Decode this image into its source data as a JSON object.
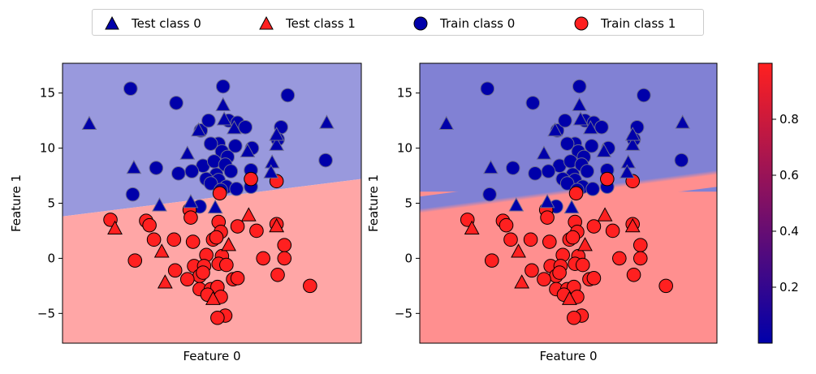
{
  "colors": {
    "class0": "#0000aa",
    "class1": "#ff2020",
    "region0_left": "#9999dd",
    "region1_left": "#ffa6a6",
    "region0_right": "#8181d4",
    "region1_right": "#ff8f8f",
    "edge": "#000000"
  },
  "legend": [
    {
      "label": "Test class 0",
      "marker": "triangle",
      "class": 0
    },
    {
      "label": "Test class 1",
      "marker": "triangle",
      "class": 1
    },
    {
      "label": "Train class 0",
      "marker": "circle",
      "class": 0
    },
    {
      "label": "Train class 1",
      "marker": "circle",
      "class": 1
    }
  ],
  "colorbar": {
    "ticks": [
      "0.2",
      "0.4",
      "0.6",
      "0.8"
    ],
    "tick_values": [
      0.2,
      0.4,
      0.6,
      0.8
    ],
    "range": [
      0,
      1
    ],
    "colormap": [
      "#0000aa",
      "#ff2020"
    ]
  },
  "chart_data": [
    {
      "type": "scatter",
      "title": "",
      "xlabel": "Feature 0",
      "ylabel": "Feature 1",
      "xlim": [
        -13.4,
        13.4
      ],
      "ylim": [
        -7.7,
        17.7
      ],
      "xticks": [],
      "yticks": [
        -5,
        0,
        5,
        10,
        15
      ],
      "decision_boundary": {
        "left_y": 3.8,
        "right_y": 7.2,
        "style": "hard"
      },
      "series": [
        {
          "name": "Train class 0",
          "class": 0,
          "marker": "circle",
          "points": [
            [
              -7.3,
              15.4
            ],
            [
              -3.2,
              14.1
            ],
            [
              1.0,
              15.6
            ],
            [
              6.8,
              14.8
            ],
            [
              -1.0,
              11.6
            ],
            [
              -0.3,
              12.5
            ],
            [
              1.5,
              12.5
            ],
            [
              2.3,
              12.3
            ],
            [
              3.0,
              11.9
            ],
            [
              6.2,
              11.9
            ],
            [
              5.9,
              10.8
            ],
            [
              0.6,
              10.4
            ],
            [
              2.1,
              10.2
            ],
            [
              3.6,
              10.0
            ],
            [
              -0.1,
              10.4
            ],
            [
              0.9,
              9.7
            ],
            [
              1.4,
              9.2
            ],
            [
              -5.0,
              8.2
            ],
            [
              -3.0,
              7.7
            ],
            [
              -0.8,
              8.4
            ],
            [
              0.2,
              8.8
            ],
            [
              1.2,
              8.5
            ],
            [
              -1.8,
              7.9
            ],
            [
              0.4,
              7.6
            ],
            [
              1.7,
              7.9
            ],
            [
              3.5,
              8.0
            ],
            [
              -0.5,
              7.2
            ],
            [
              0.6,
              7.1
            ],
            [
              1.3,
              6.5
            ],
            [
              2.2,
              6.3
            ],
            [
              3.5,
              6.5
            ],
            [
              -7.1,
              5.8
            ],
            [
              -0.1,
              6.8
            ],
            [
              -1.1,
              4.7
            ],
            [
              10.2,
              8.9
            ],
            [
              0.8,
              6.2
            ]
          ]
        },
        {
          "name": "Train class 1",
          "class": 1,
          "marker": "circle",
          "points": [
            [
              -9.1,
              3.5
            ],
            [
              -5.9,
              3.4
            ],
            [
              -5.6,
              3.0
            ],
            [
              -2.0,
              4.4
            ],
            [
              -1.9,
              3.7
            ],
            [
              0.7,
              5.9
            ],
            [
              3.5,
              7.2
            ],
            [
              5.8,
              7.0
            ],
            [
              -5.2,
              1.7
            ],
            [
              -3.4,
              1.7
            ],
            [
              -1.7,
              1.5
            ],
            [
              0.6,
              3.3
            ],
            [
              0.8,
              2.4
            ],
            [
              2.3,
              2.9
            ],
            [
              4.0,
              2.5
            ],
            [
              5.8,
              3.1
            ],
            [
              0.1,
              1.7
            ],
            [
              0.4,
              1.9
            ],
            [
              -0.5,
              0.3
            ],
            [
              0.9,
              0.2
            ],
            [
              6.5,
              1.2
            ],
            [
              -6.9,
              -0.2
            ],
            [
              -3.3,
              -1.1
            ],
            [
              -1.6,
              -0.7
            ],
            [
              -0.7,
              -0.7
            ],
            [
              0.6,
              -0.5
            ],
            [
              1.3,
              -0.6
            ],
            [
              4.6,
              0.0
            ],
            [
              6.5,
              0.0
            ],
            [
              -1.1,
              -1.6
            ],
            [
              -0.8,
              -1.3
            ],
            [
              -2.2,
              -1.9
            ],
            [
              1.9,
              -1.9
            ],
            [
              2.3,
              -1.8
            ],
            [
              -1.1,
              -2.8
            ],
            [
              -0.1,
              -2.8
            ],
            [
              0.5,
              -2.6
            ],
            [
              -0.4,
              -3.3
            ],
            [
              0.8,
              -3.5
            ],
            [
              5.9,
              -1.5
            ],
            [
              8.8,
              -2.5
            ],
            [
              1.2,
              -5.2
            ],
            [
              0.5,
              -5.4
            ]
          ]
        },
        {
          "name": "Test class 0",
          "class": 0,
          "marker": "triangle",
          "points": [
            [
              -11.0,
              12.2
            ],
            [
              -7.0,
              8.2
            ],
            [
              -1.2,
              11.6
            ],
            [
              1.0,
              13.9
            ],
            [
              1.1,
              12.6
            ],
            [
              2.0,
              11.8
            ],
            [
              3.2,
              9.7
            ],
            [
              5.8,
              10.3
            ],
            [
              5.8,
              11.2
            ],
            [
              5.4,
              8.7
            ],
            [
              5.3,
              7.8
            ],
            [
              10.3,
              12.3
            ],
            [
              -2.2,
              9.5
            ],
            [
              -4.7,
              4.8
            ],
            [
              -1.9,
              5.1
            ],
            [
              0.3,
              4.6
            ]
          ]
        },
        {
          "name": "Test class 1",
          "class": 1,
          "marker": "triangle",
          "points": [
            [
              -8.7,
              2.7
            ],
            [
              -4.5,
              0.6
            ],
            [
              -4.2,
              -2.2
            ],
            [
              1.5,
              1.2
            ],
            [
              3.3,
              3.9
            ],
            [
              0.1,
              -3.7
            ],
            [
              5.8,
              2.9
            ]
          ]
        }
      ]
    },
    {
      "type": "scatter",
      "title": "",
      "xlabel": "Feature 0",
      "ylabel": "Feature 1",
      "xlim": [
        -13.4,
        13.4
      ],
      "ylim": [
        -7.7,
        17.7
      ],
      "xticks": [],
      "yticks": [
        -5,
        0,
        5,
        10,
        15
      ],
      "decision_boundary": {
        "left_y": 4.3,
        "right_y": 7.8,
        "style": "soft",
        "width": 1.3
      },
      "series_from": "same as first panel"
    }
  ]
}
